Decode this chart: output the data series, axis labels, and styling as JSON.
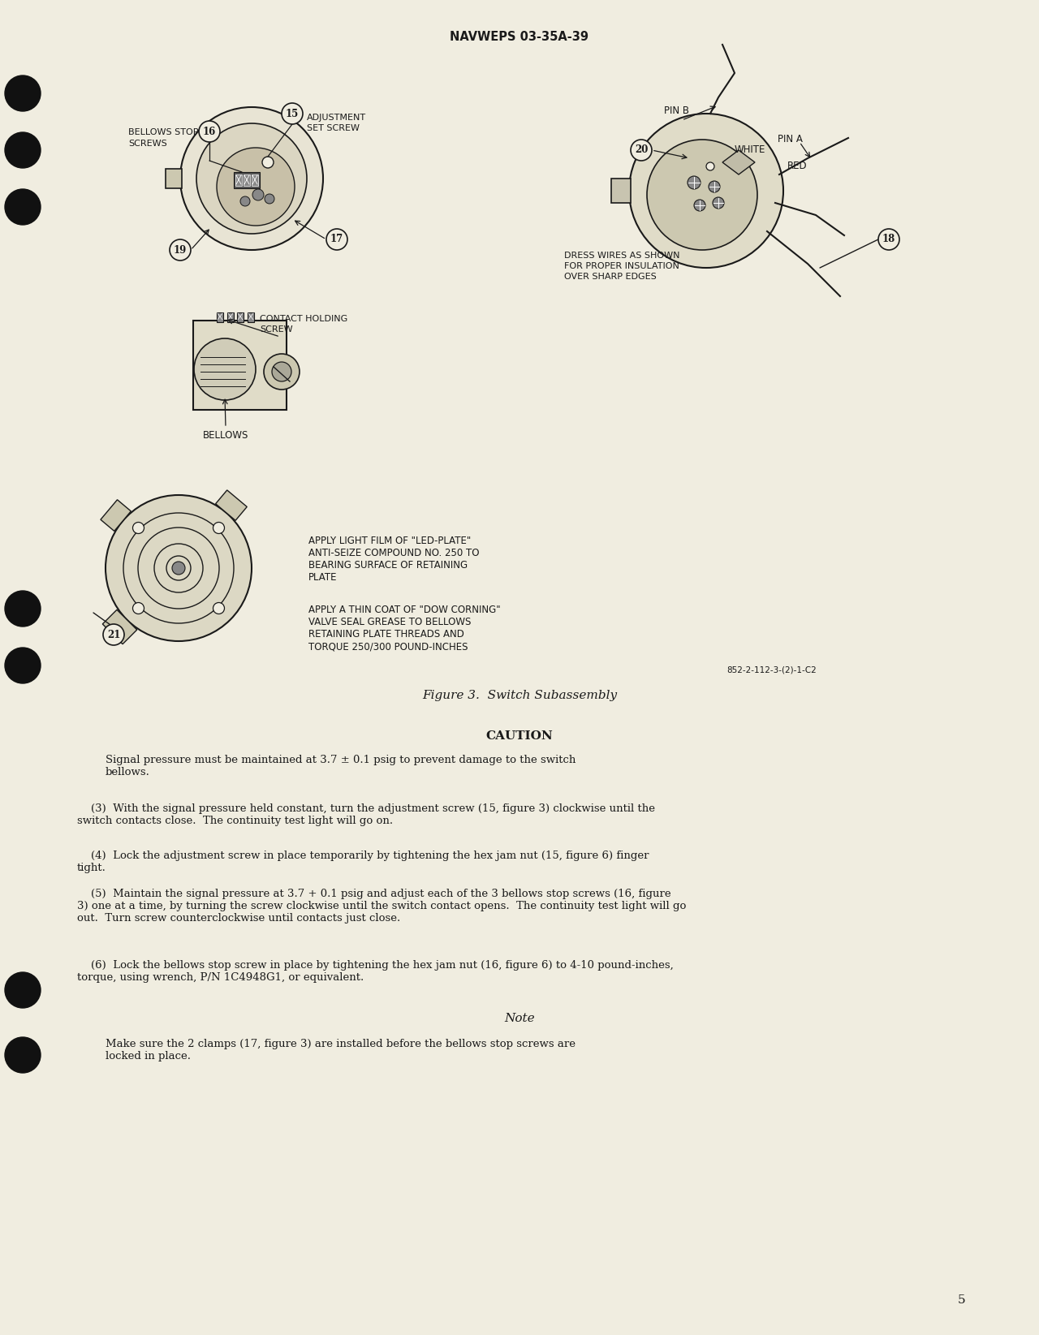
{
  "page_bg_color": "#f0ede0",
  "text_color": "#1a1a1a",
  "header_text": "NAVWEPS 03-35A-39",
  "page_number": "5",
  "figure_caption": "Figure 3.  Switch Subassembly",
  "figure_ref": "852-2-112-3-(2)-1-C2",
  "caution_title": "CAUTION",
  "caution_text": "Signal pressure must be maintained at 3.7 ± 0.1 psig to prevent damage to the switch\nbellows.",
  "note_title": "Note",
  "note_text": "Make sure the 2 clamps (17, figure 3) are installed before the bellows stop screws are\nlocked in place.",
  "para3_text": "    (3)  With the signal pressure held constant, turn the adjustment screw (15, figure 3) clockwise until the\nswitch contacts close.  The continuity test light will go on.",
  "para4_text": "    (4)  Lock the adjustment screw in place temporarily by tightening the hex jam nut (15, figure 6) finger\ntight.",
  "para5_text": "    (5)  Maintain the signal pressure at 3.7 + 0.1 psig and adjust each of the 3 bellows stop screws (16, figure\n3) one at a time, by turning the screw clockwise until the switch contact opens.  The continuity test light will go\nout.  Turn screw counterclockwise until contacts just close.",
  "para6_text": "    (6)  Lock the bellows stop screw in place by tightening the hex jam nut (16, figure 6) to 4-10 pound-inches,\ntorque, using wrench, P/N 1C4948G1, or equivalent.",
  "label_bellows_stop": "BELLOWS STOP",
  "label_bellows_stop2": "SCREWS",
  "label_16": "16",
  "label_15": "15",
  "label_adj_set": "ADJUSTMENT",
  "label_adj_set2": "SET SCREW",
  "label_19": "19",
  "label_17": "17",
  "label_pin_b": "PIN B",
  "label_20": "20",
  "label_white": "WHITE",
  "label_pin_a": "PIN A",
  "label_red": "RED",
  "label_18": "18",
  "label_dress1": "DRESS WIRES AS SHOWN",
  "label_dress2": "FOR PROPER INSULATION",
  "label_dress3": "OVER SHARP EDGES",
  "label_contact1": "CONTACT HOLDING",
  "label_contact2": "SCREW",
  "label_bellows": "BELLOWS",
  "label_21": "21",
  "label_apply1a": "APPLY LIGHT FILM OF \"LED-PLATE\"",
  "label_apply1b": "ANTI-SEIZE COMPOUND NO. 250 TO",
  "label_apply1c": "BEARING SURFACE OF RETAINING",
  "label_apply1d": "PLATE",
  "label_apply2a": "APPLY A THIN COAT OF \"DOW CORNING\"",
  "label_apply2b": "VALVE SEAL GREASE TO BELLOWS",
  "label_apply2c": "RETAINING PLATE THREADS AND",
  "label_apply2d": "TORQUE 250/300 POUND-INCHES"
}
